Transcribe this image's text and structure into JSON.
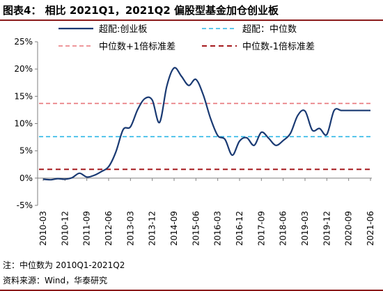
{
  "title": "图表4： 相比 2021Q1，2021Q2 偏股型基金加仓创业板",
  "footnote": "注：中位数为 2010Q1-2021Q2",
  "source": "资料来源：Wind，华泰研究",
  "colors": {
    "main": "#1a3a73",
    "median": "#2bb6e6",
    "plus": "#e8757a",
    "minus": "#a51a1e",
    "rule": "#8b1a1a"
  },
  "chart_data": {
    "type": "line",
    "ylim": [
      -5,
      25
    ],
    "yticks": [
      -5,
      0,
      5,
      10,
      15,
      20,
      25
    ],
    "ytick_labels": [
      "-5%",
      "0%",
      "5%",
      "10%",
      "15%",
      "20%",
      "25%"
    ],
    "xtick_labels": [
      "2010-03",
      "2010-12",
      "2011-09",
      "2012-06",
      "2013-03",
      "2013-12",
      "2014-09",
      "2015-06",
      "2016-03",
      "2016-12",
      "2017-09",
      "2018-06",
      "2019-03",
      "2019-12",
      "2020-09",
      "2021-06"
    ],
    "legend": {
      "placement": "top",
      "items": [
        {
          "key": "main",
          "label": "超配:创业板",
          "style": "solid"
        },
        {
          "key": "median",
          "label": "超配：中位数",
          "style": "dashed"
        },
        {
          "key": "plus",
          "label": "中位数+1倍标准差",
          "style": "dashed"
        },
        {
          "key": "minus",
          "label": "中位数-1倍标准差",
          "style": "dashed"
        }
      ]
    },
    "reference_lines": {
      "median": 7.6,
      "plus": 13.7,
      "minus": 1.6
    },
    "series": [
      {
        "name": "超配:创业板",
        "x": [
          "2010-03",
          "2010-06",
          "2010-09",
          "2010-12",
          "2011-03",
          "2011-06",
          "2011-09",
          "2011-12",
          "2012-03",
          "2012-06",
          "2012-09",
          "2012-12",
          "2013-03",
          "2013-06",
          "2013-09",
          "2013-12",
          "2014-03",
          "2014-06",
          "2014-09",
          "2014-12",
          "2015-03",
          "2015-06",
          "2015-09",
          "2015-12",
          "2016-03",
          "2016-06",
          "2016-09",
          "2016-12",
          "2017-03",
          "2017-06",
          "2017-09",
          "2017-12",
          "2018-03",
          "2018-06",
          "2018-09",
          "2018-12",
          "2019-03",
          "2019-06",
          "2019-09",
          "2019-12",
          "2020-03",
          "2020-06",
          "2020-09",
          "2020-12",
          "2021-03",
          "2021-06"
        ],
        "values": [
          -0.2,
          -0.3,
          -0.1,
          -0.2,
          0.1,
          0.9,
          0.2,
          0.5,
          1.2,
          2.1,
          4.8,
          8.9,
          9.4,
          12.6,
          14.6,
          14.3,
          10.2,
          16.9,
          20.2,
          18.7,
          17.0,
          18.1,
          15.3,
          11.0,
          7.8,
          7.1,
          4.2,
          6.8,
          7.4,
          6.0,
          8.4,
          7.3,
          6.0,
          6.9,
          8.2,
          11.5,
          12.3,
          8.8,
          9.1,
          8.0,
          12.4,
          12.4,
          12.4,
          12.4,
          12.4,
          12.4
        ]
      }
    ],
    "x_axis_note": "",
    "ylabel": "",
    "xlabel": ""
  }
}
